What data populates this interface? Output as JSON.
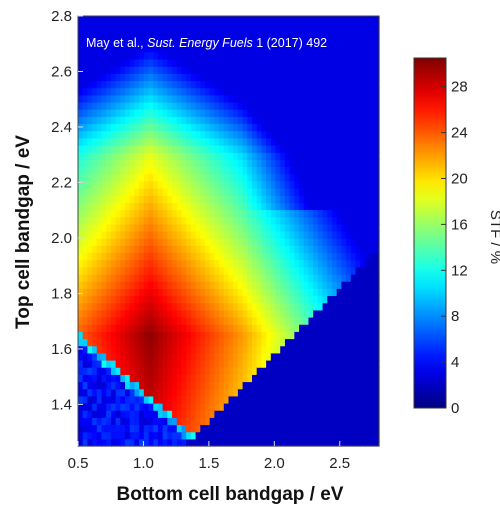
{
  "chart_data": {
    "type": "heatmap",
    "citation": {
      "authors": "May et al., ",
      "journal": "Sust. Energy Fuels",
      "details": " 1 (2017) 492"
    },
    "xlabel": "Bottom cell bandgap / eV",
    "ylabel": "Top cell bandgap / eV",
    "colorbar_label": "STF / %",
    "xlim": [
      0.5,
      2.8
    ],
    "ylim": [
      1.25,
      2.8
    ],
    "x_ticks": [
      "0.5",
      "1.0",
      "1.5",
      "2.0",
      "2.5"
    ],
    "y_ticks": [
      "1.4",
      "1.6",
      "1.8",
      "2.0",
      "2.2",
      "2.4",
      "2.6",
      "2.8"
    ],
    "colorbar_ticks": [
      "0",
      "4",
      "8",
      "12",
      "16",
      "20",
      "24",
      "28"
    ],
    "colorbar_range": [
      0,
      30.5
    ],
    "grid": false,
    "colormap": "jet",
    "peak": {
      "x": 1.05,
      "y": 1.65,
      "value": 30
    },
    "description": "Solar-to-fuel efficiency (STF) vs top and bottom cell bandgaps; valid region where top bandgap exceeds bottom bandgap, maximum around (1.0, 1.65)."
  }
}
